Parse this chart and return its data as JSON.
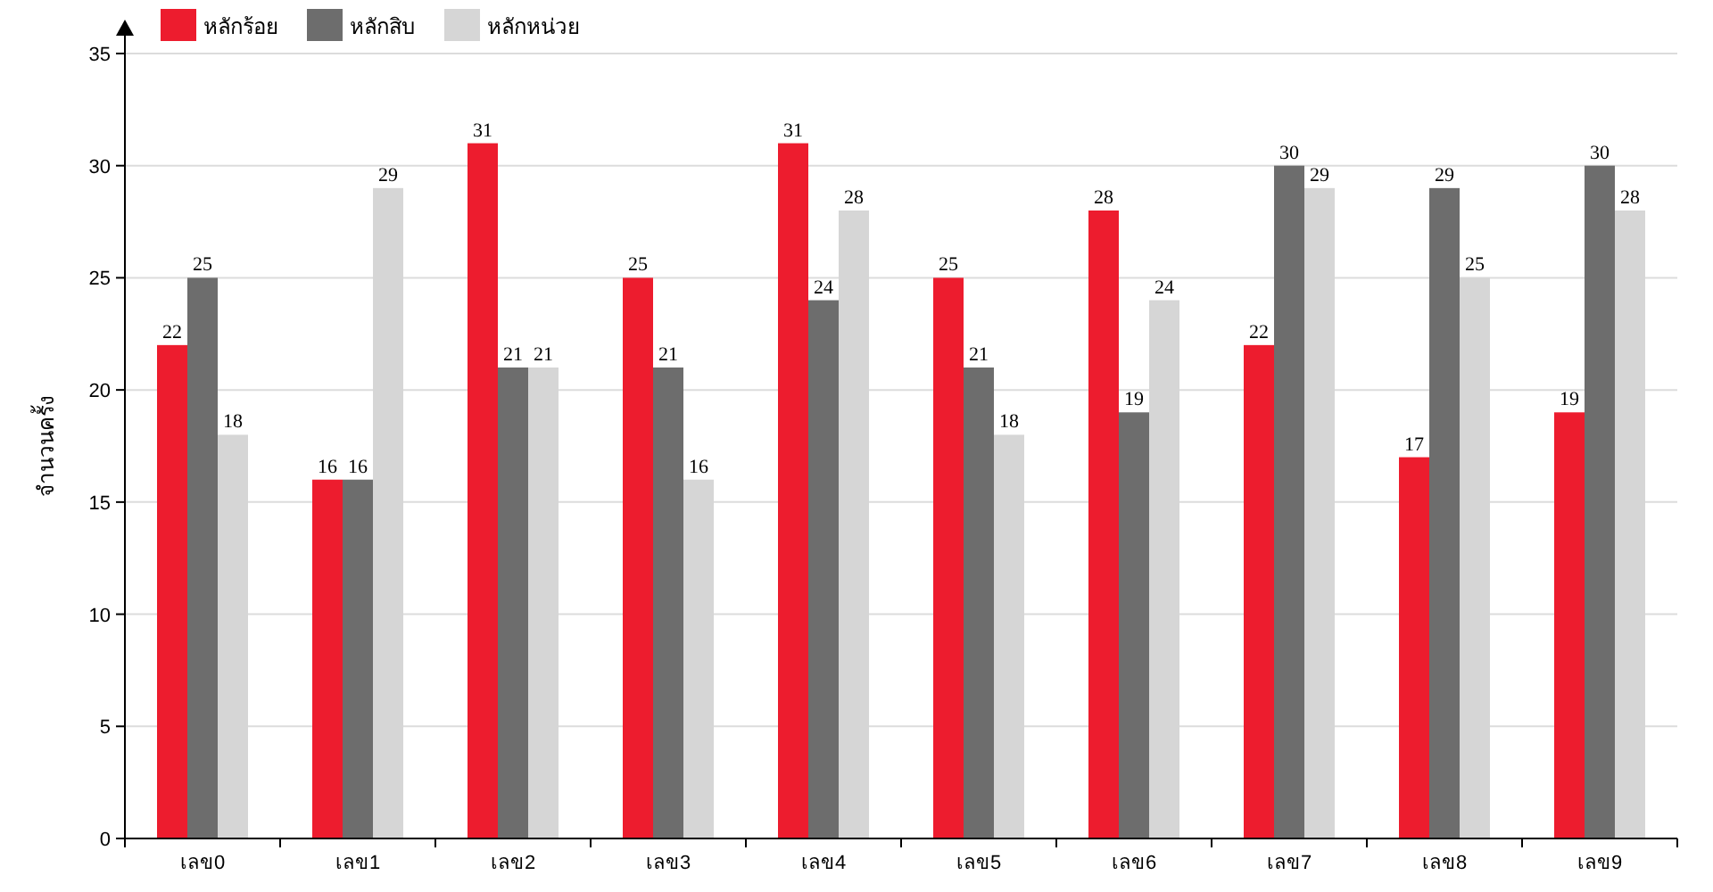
{
  "chart_data": {
    "type": "bar",
    "ylabel": "จำนวนครั้ง",
    "categories": [
      "เลข0",
      "เลข1",
      "เลข2",
      "เลข3",
      "เลข4",
      "เลข5",
      "เลข6",
      "เลข7",
      "เลข8",
      "เลข9"
    ],
    "series": [
      {
        "name": "หลักร้อย",
        "color": "#ed1c2e",
        "values": [
          22,
          16,
          31,
          25,
          31,
          25,
          28,
          22,
          17,
          19
        ]
      },
      {
        "name": "หลักสิบ",
        "color": "#6d6d6d",
        "values": [
          25,
          16,
          21,
          21,
          24,
          21,
          19,
          30,
          29,
          30
        ]
      },
      {
        "name": "หลักหน่วย",
        "color": "#d6d6d6",
        "values": [
          18,
          29,
          21,
          16,
          28,
          18,
          24,
          29,
          25,
          28
        ]
      }
    ],
    "ylim": [
      0,
      35
    ],
    "yticks": [
      0,
      5,
      10,
      15,
      20,
      25,
      30,
      35
    ],
    "grid": "y",
    "legend": "top left",
    "data_labels": true
  }
}
